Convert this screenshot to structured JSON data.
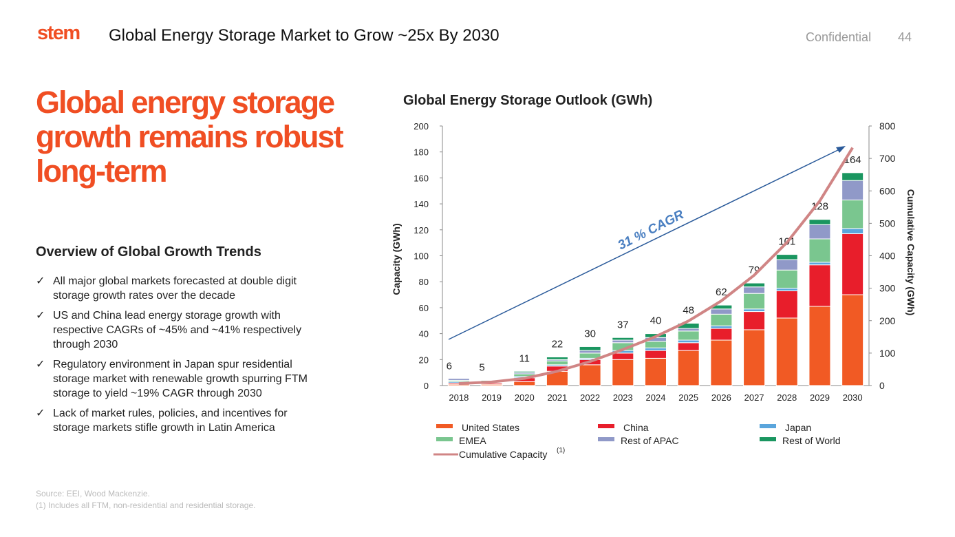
{
  "header": {
    "logo": "stem",
    "title": "Global Energy Storage Market to Grow ~25x By 2030",
    "confidential": "Confidential",
    "page_number": "44"
  },
  "headline": "Global energy storage growth remains robust long-term",
  "overview": {
    "title": "Overview of Global Growth Trends",
    "check_icon": "✓",
    "bullets": [
      "All major global markets forecasted at double digit storage growth rates over the decade",
      "US and China lead energy storage growth with respective CAGRs of ~45% and ~41% respectively through 2030",
      "Regulatory environment in Japan spur residential storage market with renewable growth spurring FTM storage to yield ~19% CAGR through 2030",
      "Lack of market rules, policies, and incentives for storage markets stifle growth in Latin America"
    ]
  },
  "footnotes": {
    "source": "Source: EEI, Wood Mackenzie.",
    "note1": "(1) Includes all FTM, non-residential and residential storage."
  },
  "chart_data": {
    "type": "bar",
    "stacked": true,
    "title": "Global Energy Storage Outlook (GWh)",
    "ylabel": "Capacity (GWh)",
    "y2label": "Cumulative Capacity (GWh)",
    "ylim": [
      0,
      200
    ],
    "y2lim": [
      0,
      800
    ],
    "yticks": [
      0,
      20,
      40,
      60,
      80,
      100,
      120,
      140,
      160,
      180,
      200
    ],
    "y2ticks": [
      0,
      100,
      200,
      300,
      400,
      500,
      600,
      700,
      800
    ],
    "categories": [
      "2018",
      "2019",
      "2020",
      "2021",
      "2022",
      "2023",
      "2024",
      "2025",
      "2026",
      "2027",
      "2028",
      "2029",
      "2030"
    ],
    "totals": [
      6,
      5,
      11,
      22,
      30,
      37,
      40,
      48,
      62,
      79,
      101,
      128,
      164
    ],
    "series": [
      {
        "name": "United States",
        "color": "#f15a24",
        "values": [
          1,
          1,
          3,
          11,
          16,
          20,
          21,
          27,
          35,
          43,
          52,
          61,
          70
        ]
      },
      {
        "name": "China",
        "color": "#e81e2b",
        "values": [
          1,
          1,
          3,
          4,
          4,
          5,
          6,
          6,
          9,
          14,
          21,
          32,
          47
        ]
      },
      {
        "name": "Japan",
        "color": "#5aa5dc",
        "values": [
          1,
          0.5,
          1,
          1,
          1,
          2,
          2,
          2,
          2,
          2,
          2,
          2,
          4
        ]
      },
      {
        "name": "EMEA",
        "color": "#7ac68f",
        "values": [
          1,
          1.5,
          2,
          3,
          4,
          6,
          5,
          7,
          9,
          12,
          14,
          18,
          22
        ]
      },
      {
        "name": "Rest of APAC",
        "color": "#9099c8",
        "values": [
          1.5,
          0.5,
          1,
          1,
          2,
          2,
          3,
          2,
          4,
          5,
          8,
          11,
          15
        ]
      },
      {
        "name": "Rest of World",
        "color": "#1a9660",
        "values": [
          0.5,
          0.5,
          1,
          2,
          3,
          2,
          3,
          4,
          3,
          3,
          4,
          4,
          6
        ]
      }
    ],
    "line": {
      "name": "Cumulative Capacity",
      "superscript": "(1)",
      "color": "#d08585",
      "axis": "right",
      "values": [
        6,
        11,
        22,
        44,
        74,
        111,
        151,
        199,
        261,
        340,
        441,
        569,
        733
      ]
    },
    "annotation": {
      "text": "31 % CAGR",
      "color": "#4a7fc1"
    },
    "legend": "bottom",
    "grid": false
  }
}
